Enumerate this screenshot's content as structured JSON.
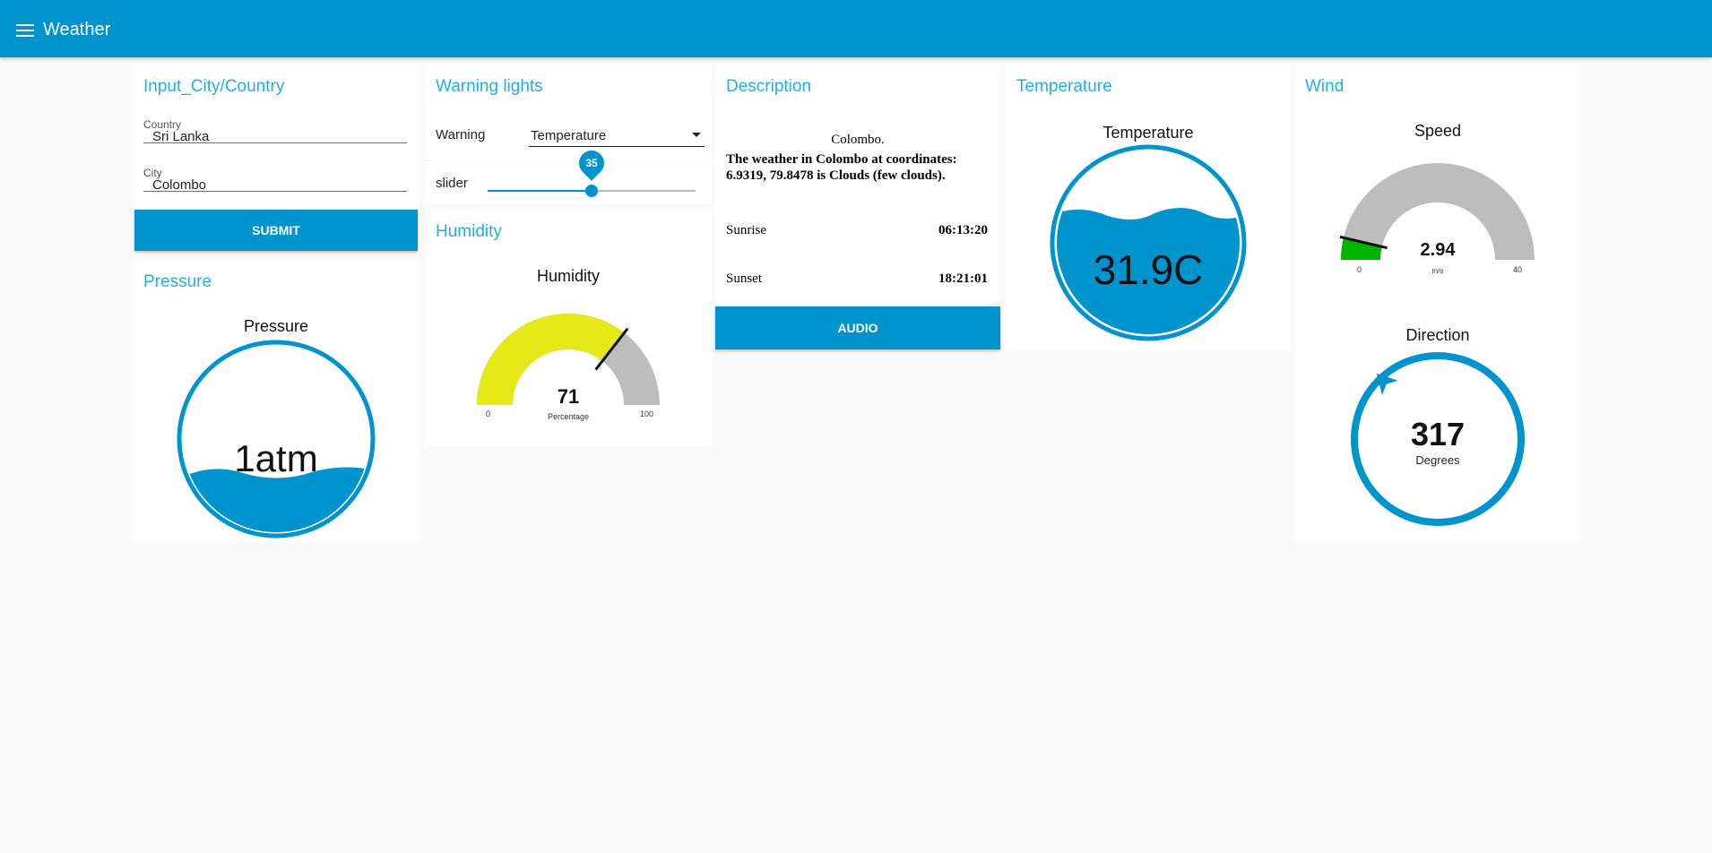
{
  "app": {
    "title": "Weather"
  },
  "input_card": {
    "title": "Input_City/Country",
    "country_label": "Country",
    "country_value": "Sri Lanka",
    "city_label": "City",
    "city_value": "Colombo",
    "submit_label": "SUBMIT"
  },
  "pressure_card": {
    "title": "Pressure",
    "gauge_title": "Pressure",
    "value_text": "1atm"
  },
  "warning_card": {
    "title": "Warning lights",
    "warning_label": "Warning",
    "warning_selected": "Temperature",
    "slider_label": "slider",
    "slider_value": 35,
    "slider_value_text": "35",
    "slider_min": 0,
    "slider_max": 70
  },
  "humidity_card": {
    "title": "Humidity",
    "gauge_title": "Humidity",
    "value": 71,
    "value_text": "71",
    "units": "Percentage",
    "min_text": "0",
    "max_text": "100",
    "min": 0,
    "max": 100
  },
  "description_card": {
    "title": "Description",
    "city_line": "Colombo.",
    "desc_line1": "The weather in Colombo at coordinates:",
    "desc_line2": "6.9319, 79.8478 is Clouds (few clouds).",
    "sunrise_label": "Sunrise",
    "sunrise_value": "06:13:20",
    "sunset_label": "Sunset",
    "sunset_value": "18:21:01",
    "audio_label": "AUDIO"
  },
  "temperature_card": {
    "title": "Temperature",
    "gauge_title": "Temperature",
    "value_text": "31.9C"
  },
  "wind_card": {
    "title": "Wind",
    "speed_title": "Speed",
    "speed_value": 2.94,
    "speed_text": "2.94",
    "speed_units": "m/s",
    "speed_min_text": "0",
    "speed_max_text": "40",
    "speed_min": 0,
    "speed_max": 40,
    "direction_title": "Direction",
    "direction_value": 317,
    "direction_text": "317",
    "direction_units": "Degrees"
  },
  "colors": {
    "accent": "#0094ce",
    "title": "#21b0e8",
    "humidity_fill": "#e6e817",
    "gauge_bg": "#bdbdbd",
    "speed_fill": "#00b500"
  }
}
